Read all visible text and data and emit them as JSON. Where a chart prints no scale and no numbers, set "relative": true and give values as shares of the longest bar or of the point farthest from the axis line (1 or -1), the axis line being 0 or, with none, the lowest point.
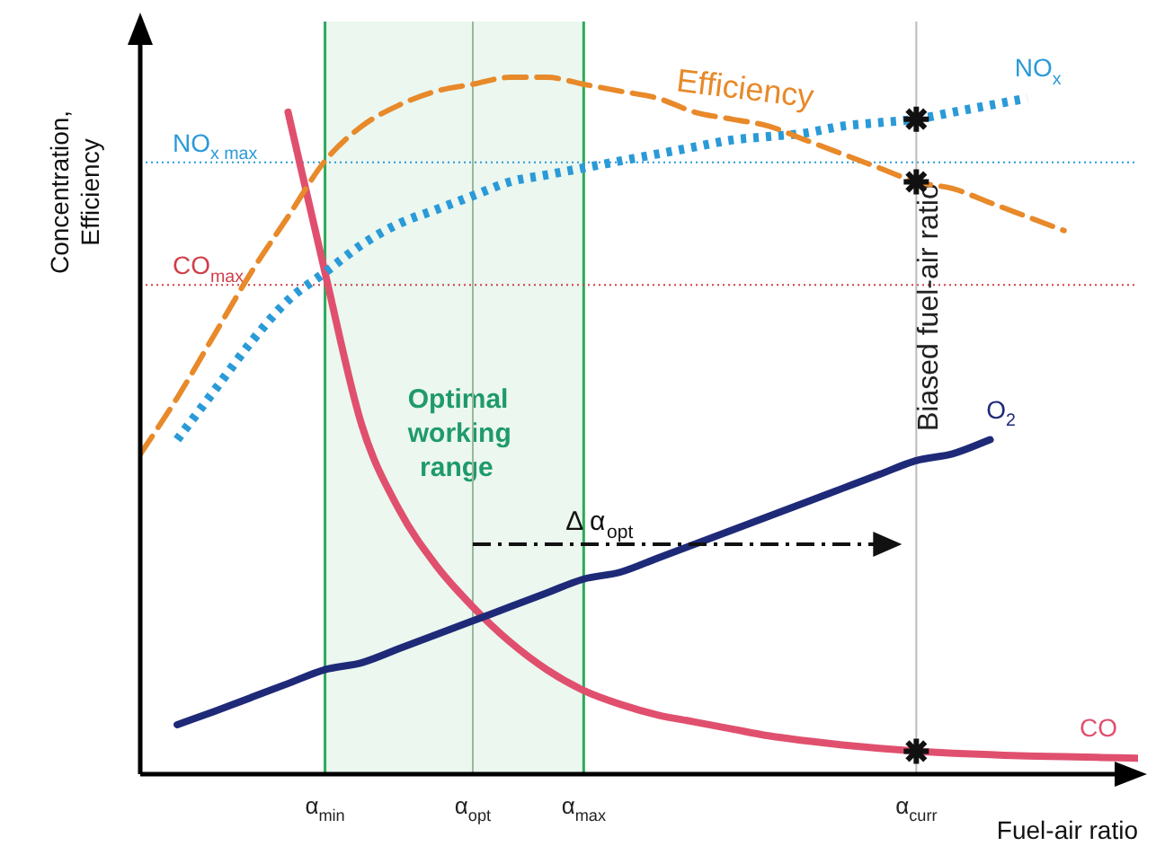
{
  "chart_data": {
    "type": "line",
    "relative": true,
    "ylabel": "Concentration, Efficiency",
    "xlabel": "Fuel-air ratio",
    "categories": [
      null,
      null,
      null,
      null,
      null,
      "α$_{min}$",
      null,
      null,
      null,
      "α$_{opt}$",
      null,
      null,
      "α$_{max}$",
      null,
      null,
      null,
      null,
      null,
      null,
      null,
      null,
      "α$_{curr}$",
      null,
      null,
      null,
      null,
      null,
      null
    ],
    "tick_labels": "x",
    "legend": false,
    "series": [
      {
        "name": "Efficiency",
        "color": "#e8892a",
        "line_style": "dashed",
        "values": [
          0.459,
          0.54,
          0.63,
          0.72,
          0.8,
          0.88,
          0.93,
          0.96,
          0.98,
          0.99,
          1,
          1,
          0.99,
          0.98,
          0.97,
          0.95,
          0.94,
          0.93,
          0.91,
          0.89,
          0.87,
          0.85,
          0.84,
          0.82,
          0.8,
          0.78,
          null,
          null
        ]
      },
      {
        "name": "NO$_{x}$",
        "color": "#2a9ad8",
        "line_style": "dotted",
        "values": [
          null,
          0.48,
          0.55,
          0.62,
          0.68,
          0.72,
          0.76,
          0.79,
          0.81,
          0.83,
          0.85,
          0.86,
          0.87,
          0.88,
          0.89,
          0.9,
          0.91,
          0.915,
          0.92,
          0.93,
          0.935,
          0.94,
          0.95,
          0.96,
          0.97,
          null,
          null,
          null
        ]
      },
      {
        "name": "O$_{2}$",
        "color": "#1e2a78",
        "line_style": "solid",
        "values": [
          null,
          0.071,
          0.09,
          0.11,
          0.13,
          0.15,
          0.16,
          0.18,
          0.2,
          0.22,
          0.24,
          0.26,
          0.28,
          0.29,
          0.31,
          0.33,
          0.35,
          0.37,
          0.39,
          0.41,
          0.43,
          0.45,
          0.46,
          0.48,
          null,
          null,
          null,
          null
        ]
      },
      {
        "name": "CO",
        "color": "#e0506e",
        "line_style": "solid",
        "values": [
          null,
          null,
          null,
          null,
          0.95,
          0.72,
          0.5,
          0.38,
          0.3,
          0.24,
          0.19,
          0.15,
          0.12,
          0.1,
          0.085,
          0.075,
          0.065,
          0.055,
          0.048,
          0.042,
          0.037,
          0.033,
          0.03,
          0.028,
          0.026,
          0.025,
          0.024,
          0.023
        ]
      },
      {
        "type": "scatter",
        "color": "#111111",
        "marker": "cross",
        "x": [
          "α$_{curr}$",
          "α$_{curr}$",
          "α$_{curr}$"
        ],
        "values": [
          0.94,
          0.85,
          0.033
        ]
      }
    ],
    "ref_lines": [
      {
        "axis": "y",
        "value": 0.878,
        "label": "NO$_{x max}$",
        "color": "#2a9ad8",
        "line_style": "dotted"
      },
      {
        "axis": "y",
        "value": 0.702,
        "label": "CO$_{max}$",
        "color": "#d0404a",
        "line_style": "dotted"
      },
      {
        "axis": "x",
        "value": "α$_{opt}$",
        "color": "#9ab89a",
        "line_style": "solid"
      },
      {
        "axis": "x",
        "value": "α$_{curr}$",
        "label": "Biased fuel-air ratio",
        "color": "#bbbbbb",
        "line_style": "solid"
      }
    ],
    "bands": [
      {
        "axis": "x",
        "from": "α$_{min}$",
        "to": "α$_{max}$",
        "label": "Optimal working range",
        "color": "#2eaa5a"
      }
    ],
    "annotations": [
      "Δ α$_{opt}$"
    ]
  }
}
